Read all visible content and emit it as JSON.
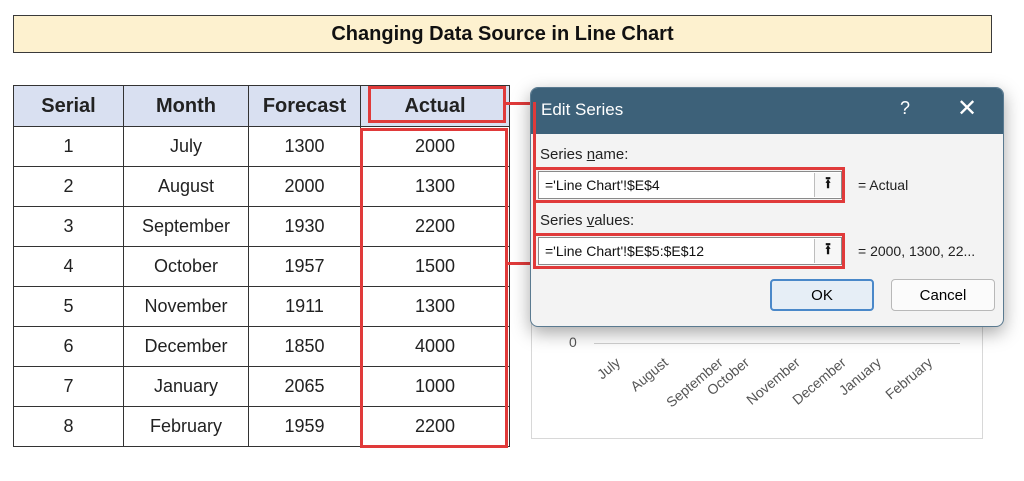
{
  "page_title": "Changing Data Source in Line Chart",
  "table": {
    "headers": [
      "Serial",
      "Month",
      "Forecast",
      "Actual"
    ],
    "rows": [
      [
        "1",
        "July",
        "1300",
        "2000"
      ],
      [
        "2",
        "August",
        "2000",
        "1300"
      ],
      [
        "3",
        "September",
        "1930",
        "2200"
      ],
      [
        "4",
        "October",
        "1957",
        "1500"
      ],
      [
        "5",
        "November",
        "1911",
        "1300"
      ],
      [
        "6",
        "December",
        "1850",
        "4000"
      ],
      [
        "7",
        "January",
        "2065",
        "1000"
      ],
      [
        "8",
        "February",
        "1959",
        "2200"
      ]
    ]
  },
  "dialog": {
    "title": "Edit Series",
    "help_label": "?",
    "close_label": "✕",
    "series_name_label_pre": "Series ",
    "series_name_label_ul": "n",
    "series_name_label_post": "ame:",
    "series_name_value": "='Line Chart'!$E$4",
    "series_name_result": "= Actual",
    "series_values_label_pre": "Series ",
    "series_values_label_ul": "v",
    "series_values_label_post": "alues:",
    "series_values_value": "='Line Chart'!$E$5:$E$12",
    "series_values_result": "= 2000, 1300, 22...",
    "collapse_icon": "⭱",
    "ok_label": "OK",
    "cancel_label": "Cancel"
  },
  "chart": {
    "y_min_label": "0",
    "categories": [
      "July",
      "August",
      "September",
      "October",
      "November",
      "December",
      "January",
      "February"
    ]
  },
  "colors": {
    "highlight": "#e03a3a",
    "dialog_header": "#3d6179",
    "table_header": "#d9e0f1",
    "title_bg": "#fdf1cf"
  }
}
